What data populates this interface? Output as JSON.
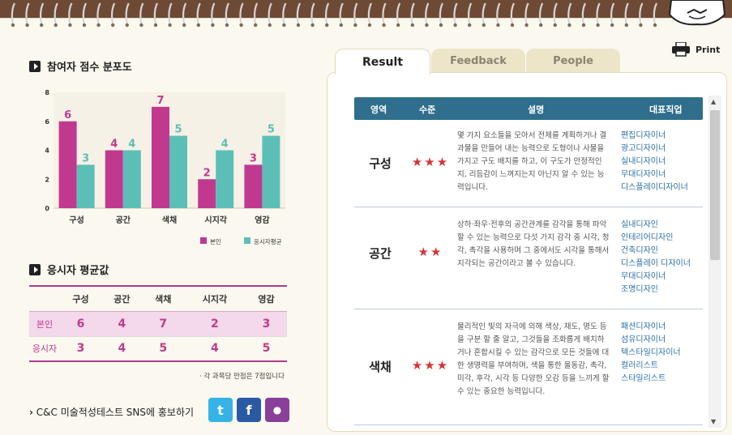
{
  "header": {
    "print_label": "Print"
  },
  "distribution": {
    "title": "참여자 점수 분포도"
  },
  "chart_data": {
    "type": "bar",
    "categories": [
      "구성",
      "공간",
      "색채",
      "시지각",
      "영감"
    ],
    "series": [
      {
        "name": "본인",
        "values": [
          6,
          4,
          7,
          2,
          3
        ],
        "color": "#c1398f"
      },
      {
        "name": "응시자평균",
        "values": [
          3,
          4,
          5,
          4,
          5
        ],
        "color": "#5cbfb7"
      }
    ],
    "ylim": [
      0,
      8
    ],
    "yticks": [
      0,
      2,
      4,
      6,
      8
    ],
    "grid": false,
    "legend": "bottom-right",
    "data_labels": true
  },
  "average": {
    "title": "응시자 평균값",
    "columns": [
      "구성",
      "공간",
      "색채",
      "시지각",
      "영감"
    ],
    "rows": [
      {
        "label": "본인",
        "values": [
          "6",
          "4",
          "7",
          "2",
          "3"
        ]
      },
      {
        "label": "응시자",
        "values": [
          "3",
          "4",
          "5",
          "4",
          "5"
        ]
      }
    ],
    "note": "· 각 과목당 만점은 7점입니다"
  },
  "sns": {
    "text": "C&C 미술적성테스트 SNS에 홍보하기",
    "buttons": [
      {
        "name": "twitter",
        "glyph": "t",
        "color": "#35b3e6"
      },
      {
        "name": "facebook",
        "glyph": "f",
        "color": "#2b5aa4"
      },
      {
        "name": "kakao",
        "glyph": "●",
        "color": "#8a3f9b"
      }
    ]
  },
  "tabs": [
    "Result",
    "Feedback",
    "People"
  ],
  "result": {
    "headers": [
      "영역",
      "수준",
      "설명",
      "대표직업"
    ],
    "rows": [
      {
        "area": "구성",
        "stars": "★★★",
        "desc": "몇 가지 요소들을 모아서 전체를 계획하거나 결과물을 만들어 내는 능력으로 도형이나 사물을 가지고 구도 배치를 하고, 이 구도가 안정적인지, 리듬감이 느껴지는지 아닌지 알 수 있는 능력입니다.",
        "jobs": [
          "편집디자이너",
          "광고디자이너",
          "실내디자이너",
          "무대디자이너",
          "디스플레이디자이너"
        ]
      },
      {
        "area": "공간",
        "stars": "★★",
        "desc": "상하·좌우·전후의 공간관계를 감각을 통해 파악할 수 있는 능력으로 다섯 가지 감각 중 시각, 청각, 촉각을 사용하며 그 중에서도 시각을 통해서 지각되는 공간이라고 볼 수 있습니다.",
        "jobs": [
          "실내디자인",
          "인테리어디자인",
          "건축디자인",
          "디스플레이 디자이너",
          "무대디자이너",
          "조명디자인"
        ]
      },
      {
        "area": "색채",
        "stars": "★★★",
        "desc": "물리적인 빛의 자극에 의해 색상, 채도, 명도 등을 구분 할 줄 알고, 그것들을 조화롭게 배치하거나 혼합시킬 수 있는 감각으로 모든 것들에 대한 생명력을 부여하며, 색을 통한 울동감, 촉각, 미각, 후각, 시각 등 다양한 오감 등을 느끼게 할 수 있는 중요한 능력입니다.",
        "jobs": [
          "패션디자이너",
          "섬유디자이너",
          "텍스타일디자이너",
          "컬러리스트",
          "스타일리스트"
        ]
      }
    ]
  }
}
